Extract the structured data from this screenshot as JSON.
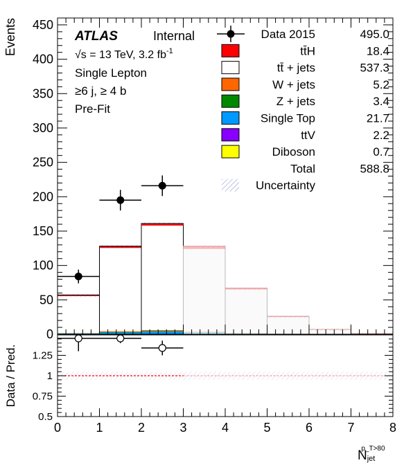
{
  "chart_data": {
    "type": "bar",
    "x_edges": [
      0,
      1,
      2,
      3,
      4,
      5,
      6,
      7,
      8
    ],
    "xlabel": "N",
    "xlabel_sub": "jet",
    "xlabel_sup": "p_T>80",
    "ylabel": "Events",
    "ylim": [
      0,
      460
    ],
    "yticks": [
      "0",
      "50",
      "100",
      "150",
      "200",
      "250",
      "300",
      "350",
      "400",
      "450"
    ],
    "ytick_values": [
      0,
      50,
      100,
      150,
      200,
      250,
      300,
      350,
      400,
      450
    ],
    "xticks": [
      "0",
      "1",
      "2",
      "3",
      "4",
      "5",
      "6",
      "7",
      "8"
    ],
    "stack_total": [
      57,
      128,
      161,
      128,
      67,
      26,
      7,
      1
    ],
    "ttH_band": [
      1.5,
      2.5,
      3,
      4,
      2,
      1,
      0.5,
      0.2
    ],
    "background_stack": [
      {
        "name": "Single Top",
        "values": [
          1,
          2.5,
          4,
          2.5,
          1,
          0.5,
          0.2,
          0
        ]
      },
      {
        "name": "Z + jets",
        "values": [
          0.3,
          0.8,
          0.8,
          0.5,
          0.3,
          0.1,
          0,
          0
        ]
      },
      {
        "name": "W + jets",
        "values": [
          0.3,
          1,
          1.2,
          0.8,
          0.4,
          0.2,
          0,
          0
        ]
      }
    ],
    "data_points": [
      {
        "x": 0.5,
        "y": 84,
        "yerr": 10
      },
      {
        "x": 1.5,
        "y": 195,
        "yerr": 15
      },
      {
        "x": 2.5,
        "y": 216,
        "yerr": 15
      }
    ],
    "atlas_label": "ATLAS",
    "internal_label": "Internal",
    "info_lines": [
      "Single Lepton",
      "≥6 j, ≥ 4 b",
      "Pre-Fit"
    ],
    "energy_line": "√s = 13 TeV, 3.2 fb",
    "energy_sup": "-1",
    "legend": [
      {
        "name": "Data 2015",
        "yield": "495.0",
        "style": "marker"
      },
      {
        "name": "tt̄H",
        "yield": "18.4",
        "style": "box",
        "color": "#ff0000"
      },
      {
        "name": "tt̄ + jets",
        "yield": "537.3",
        "style": "box",
        "color": "#ffffff"
      },
      {
        "name": "W + jets",
        "yield": "5.2",
        "style": "box",
        "color": "#ff6600"
      },
      {
        "name": "Z + jets",
        "yield": "3.4",
        "style": "box",
        "color": "#008800"
      },
      {
        "name": "Single Top",
        "yield": "21.7",
        "style": "box",
        "color": "#0099ff"
      },
      {
        "name": "ttV",
        "yield": "2.2",
        "style": "box",
        "color": "#8800ff"
      },
      {
        "name": "Diboson",
        "yield": "0.7",
        "style": "box",
        "color": "#ffff00"
      },
      {
        "name": "Total",
        "yield": "588.8",
        "style": "none"
      },
      {
        "name": "Uncertainty",
        "yield": "",
        "style": "hatch",
        "color": "#4444cc"
      }
    ],
    "ratio": {
      "ylabel": "Data / Pred.",
      "ylim": [
        0.5,
        1.5
      ],
      "yticks": [
        "0.5",
        "0.75",
        "1",
        "1.25"
      ],
      "ytick_values": [
        0.5,
        0.75,
        1.0,
        1.25
      ],
      "points": [
        {
          "x": 0.5,
          "y": 1.47,
          "yerr": 0.17
        },
        {
          "x": 1.5,
          "y": 1.52,
          "yerr": 0.12
        },
        {
          "x": 2.5,
          "y": 1.34,
          "yerr": 0.09
        }
      ]
    }
  }
}
